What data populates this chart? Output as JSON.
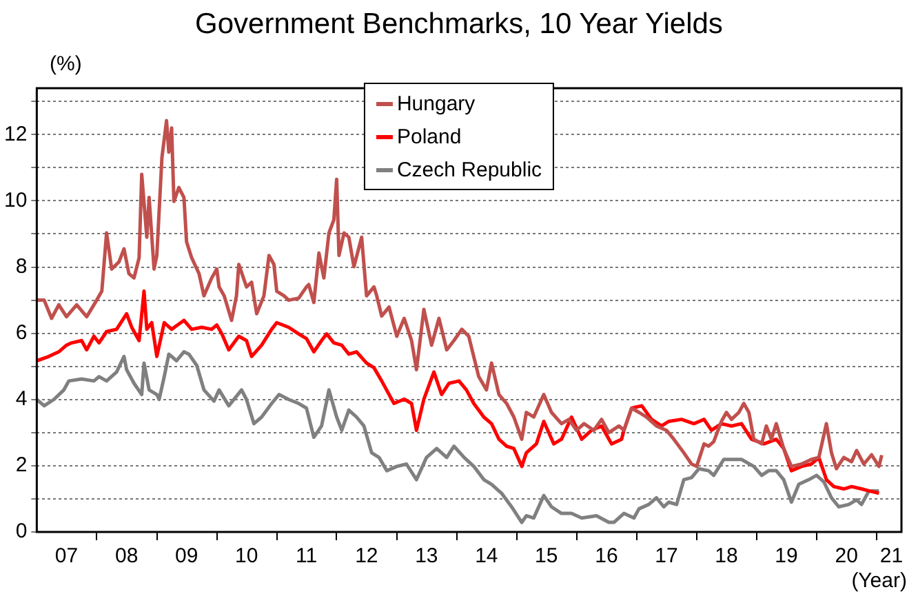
{
  "chart_data": {
    "type": "line",
    "title": "Government Benchmarks, 10 Year Yields",
    "xlabel": "(Year)",
    "ylabel": "(%)",
    "xlim": [
      "2007-01-01",
      "2021-06-01"
    ],
    "ylim": [
      0,
      13.4
    ],
    "xticks": [
      {
        "value": "2008-01-01",
        "label": null
      },
      {
        "value": "2009-01-01",
        "label": null
      },
      {
        "value": "2010-01-01",
        "label": null
      },
      {
        "value": "2011-01-01",
        "label": null
      },
      {
        "value": "2012-01-01",
        "label": null
      },
      {
        "value": "2013-01-01",
        "label": null
      },
      {
        "value": "2014-01-01",
        "label": null
      },
      {
        "value": "2015-01-01",
        "label": null
      },
      {
        "value": "2016-01-01",
        "label": null
      },
      {
        "value": "2017-01-01",
        "label": null
      },
      {
        "value": "2018-01-01",
        "label": null
      },
      {
        "value": "2019-01-01",
        "label": null
      },
      {
        "value": "2020-01-01",
        "label": null
      },
      {
        "value": "2021-01-01",
        "label": null
      },
      {
        "value": "2007-07-01",
        "label": "07"
      },
      {
        "value": "2008-07-01",
        "label": "08"
      },
      {
        "value": "2009-07-01",
        "label": "09"
      },
      {
        "value": "2010-07-01",
        "label": "10"
      },
      {
        "value": "2011-07-01",
        "label": "11"
      },
      {
        "value": "2012-07-01",
        "label": "12"
      },
      {
        "value": "2013-07-01",
        "label": "13"
      },
      {
        "value": "2014-07-01",
        "label": "14"
      },
      {
        "value": "2015-07-01",
        "label": "15"
      },
      {
        "value": "2016-07-01",
        "label": "16"
      },
      {
        "value": "2017-07-01",
        "label": "17"
      },
      {
        "value": "2018-07-01",
        "label": "18"
      },
      {
        "value": "2019-07-01",
        "label": "19"
      },
      {
        "value": "2020-07-01",
        "label": "20"
      },
      {
        "value": "2021-04-01",
        "label": "21"
      }
    ],
    "yticks": [
      0,
      {
        "value": 1,
        "label": null
      },
      2,
      {
        "value": 3,
        "label": null
      },
      4,
      {
        "value": 5,
        "label": null
      },
      6,
      {
        "value": 7,
        "label": null
      },
      8,
      {
        "value": 9,
        "label": null
      },
      10,
      {
        "value": 11,
        "label": null
      },
      12,
      {
        "value": 13,
        "label": null
      }
    ],
    "grid": "y",
    "legend": "top",
    "series": [
      {
        "name": "Hungary",
        "color": "#c0504d",
        "x": [
          "2007-01-01",
          "2007-02-15",
          "2007-04-01",
          "2007-05-15",
          "2007-07-01",
          "2007-09-01",
          "2007-11-01",
          "2008-01-01",
          "2008-02-01",
          "2008-03-01",
          "2008-04-01",
          "2008-05-15",
          "2008-06-15",
          "2008-07-15",
          "2008-08-15",
          "2008-09-15",
          "2008-10-01",
          "2008-11-01",
          "2008-11-15",
          "2008-12-15",
          "2009-01-01",
          "2009-02-01",
          "2009-03-01",
          "2009-03-15",
          "2009-04-01",
          "2009-04-15",
          "2009-05-15",
          "2009-06-15",
          "2009-07-01",
          "2009-08-01",
          "2009-09-15",
          "2009-10-15",
          "2009-12-01",
          "2010-01-01",
          "2010-01-15",
          "2010-02-15",
          "2010-04-01",
          "2010-05-01",
          "2010-05-15",
          "2010-07-01",
          "2010-08-01",
          "2010-09-01",
          "2010-10-15",
          "2010-11-15",
          "2010-12-15",
          "2011-01-01",
          "2011-02-15",
          "2011-03-15",
          "2011-05-15",
          "2011-07-01",
          "2011-07-15",
          "2011-08-15",
          "2011-09-15",
          "2011-10-15",
          "2011-11-15",
          "2011-12-15",
          "2012-01-01",
          "2012-01-15",
          "2012-02-15",
          "2012-03-15",
          "2012-04-15",
          "2012-06-01",
          "2012-07-01",
          "2012-08-15",
          "2012-09-01",
          "2012-10-01",
          "2012-11-15",
          "2013-01-01",
          "2013-02-15",
          "2013-04-01",
          "2013-05-01",
          "2013-06-15",
          "2013-08-01",
          "2013-09-15",
          "2013-11-01",
          "2013-12-15",
          "2014-02-01",
          "2014-03-15",
          "2014-05-15",
          "2014-07-01",
          "2014-08-01",
          "2014-09-15",
          "2014-11-01",
          "2014-12-15",
          "2015-02-01",
          "2015-03-01",
          "2015-04-15",
          "2015-06-15",
          "2015-08-01",
          "2015-10-01",
          "2015-11-15",
          "2016-01-01",
          "2016-02-15",
          "2016-04-15",
          "2016-06-01",
          "2016-07-15",
          "2016-09-15",
          "2016-10-15",
          "2016-12-01",
          "2017-01-15",
          "2017-03-01",
          "2017-05-01",
          "2017-07-01",
          "2017-08-15",
          "2017-10-15",
          "2017-12-01",
          "2018-01-01",
          "2018-02-15",
          "2018-03-15",
          "2018-04-15",
          "2018-06-01",
          "2018-07-01",
          "2018-08-01",
          "2018-09-15",
          "2018-10-15",
          "2018-11-15",
          "2018-12-15",
          "2019-02-01",
          "2019-03-01",
          "2019-04-01",
          "2019-05-01",
          "2019-06-15",
          "2019-08-01",
          "2019-10-01",
          "2019-12-01",
          "2020-01-15",
          "2020-03-01",
          "2020-04-01",
          "2020-05-01",
          "2020-06-15",
          "2020-08-01",
          "2020-09-01",
          "2020-10-15",
          "2020-12-01",
          "2021-01-15",
          "2021-02-01"
        ],
        "values": [
          7.0,
          7.0,
          6.45,
          6.86,
          6.5,
          6.86,
          6.5,
          7.0,
          7.27,
          9.03,
          7.94,
          8.15,
          8.55,
          7.8,
          7.67,
          8.28,
          10.8,
          8.9,
          10.1,
          7.94,
          8.35,
          11.3,
          12.42,
          11.47,
          12.2,
          9.98,
          10.4,
          10.1,
          8.76,
          8.28,
          7.8,
          7.13,
          7.67,
          7.94,
          7.4,
          7.13,
          6.39,
          7.13,
          8.08,
          7.4,
          7.54,
          6.59,
          7.13,
          8.35,
          8.08,
          7.27,
          7.13,
          7.0,
          7.06,
          7.4,
          7.47,
          6.93,
          8.42,
          7.67,
          9.03,
          9.43,
          10.65,
          8.35,
          9.03,
          8.9,
          8.01,
          8.9,
          7.13,
          7.4,
          7.13,
          6.52,
          6.79,
          5.91,
          6.45,
          5.78,
          4.9,
          6.72,
          5.64,
          6.45,
          5.5,
          5.78,
          6.12,
          5.91,
          4.69,
          4.29,
          5.1,
          4.15,
          3.88,
          3.47,
          2.8,
          3.61,
          3.47,
          4.15,
          3.61,
          3.27,
          3.4,
          3.07,
          3.27,
          3.07,
          3.4,
          3.0,
          3.2,
          3.07,
          3.74,
          3.61,
          3.47,
          3.2,
          3.07,
          2.8,
          2.39,
          2.05,
          1.98,
          2.66,
          2.59,
          2.73,
          3.34,
          3.61,
          3.4,
          3.61,
          3.88,
          3.61,
          2.8,
          2.66,
          3.2,
          2.8,
          3.27,
          2.52,
          1.98,
          2.05,
          2.19,
          2.25,
          3.27,
          2.39,
          1.91,
          2.25,
          2.12,
          2.46,
          2.05,
          2.33,
          1.98,
          2.32
        ]
      },
      {
        "name": "Poland",
        "color": "#ff0000",
        "x": [
          "2007-01-01",
          "2007-03-15",
          "2007-05-15",
          "2007-07-01",
          "2007-08-01",
          "2007-10-01",
          "2007-11-01",
          "2007-12-15",
          "2008-01-15",
          "2008-03-01",
          "2008-05-01",
          "2008-07-01",
          "2008-08-01",
          "2008-09-15",
          "2008-10-15",
          "2008-11-01",
          "2008-12-01",
          "2009-01-01",
          "2009-02-15",
          "2009-04-01",
          "2009-06-15",
          "2009-08-01",
          "2009-10-01",
          "2009-12-01",
          "2010-01-01",
          "2010-02-01",
          "2010-03-15",
          "2010-05-15",
          "2010-07-01",
          "2010-08-01",
          "2010-10-01",
          "2010-12-01",
          "2011-01-01",
          "2011-03-15",
          "2011-05-15",
          "2011-07-01",
          "2011-08-15",
          "2011-10-01",
          "2011-11-01",
          "2011-12-15",
          "2012-02-01",
          "2012-03-15",
          "2012-05-01",
          "2012-07-01",
          "2012-08-15",
          "2012-10-01",
          "2012-12-15",
          "2013-02-15",
          "2013-04-01",
          "2013-05-01",
          "2013-06-15",
          "2013-08-15",
          "2013-10-01",
          "2013-11-15",
          "2014-01-15",
          "2014-03-01",
          "2014-04-15",
          "2014-06-15",
          "2014-08-01",
          "2014-09-15",
          "2014-11-01",
          "2014-12-15",
          "2015-02-01",
          "2015-03-01",
          "2015-05-01",
          "2015-06-15",
          "2015-08-15",
          "2015-10-01",
          "2015-12-01",
          "2016-02-01",
          "2016-04-01",
          "2016-06-01",
          "2016-08-01",
          "2016-10-01",
          "2016-10-15",
          "2016-12-01",
          "2017-02-01",
          "2017-04-01",
          "2017-06-01",
          "2017-07-15",
          "2017-10-01",
          "2017-12-15",
          "2018-02-15",
          "2018-04-01",
          "2018-06-01",
          "2018-08-01",
          "2018-10-01",
          "2018-12-01",
          "2019-02-15",
          "2019-05-01",
          "2019-06-15",
          "2019-08-01",
          "2019-10-01",
          "2019-12-01",
          "2020-01-15",
          "2020-03-01",
          "2020-04-15",
          "2020-06-15",
          "2020-08-01",
          "2020-10-01",
          "2020-11-15",
          "2021-01-15"
        ],
        "values": [
          5.17,
          5.3,
          5.44,
          5.64,
          5.71,
          5.78,
          5.5,
          5.91,
          5.71,
          6.05,
          6.12,
          6.59,
          6.18,
          5.78,
          7.27,
          6.12,
          6.32,
          5.3,
          6.32,
          6.12,
          6.39,
          6.12,
          6.18,
          6.12,
          6.25,
          5.98,
          5.5,
          5.91,
          5.78,
          5.3,
          5.64,
          6.12,
          6.32,
          6.18,
          5.98,
          5.84,
          5.44,
          5.78,
          5.98,
          5.71,
          5.64,
          5.37,
          5.44,
          5.1,
          4.96,
          4.56,
          3.88,
          4.01,
          3.88,
          3.07,
          4.01,
          4.83,
          4.15,
          4.49,
          4.56,
          4.29,
          3.88,
          3.47,
          3.27,
          2.8,
          2.59,
          2.52,
          1.98,
          2.39,
          2.66,
          3.34,
          2.66,
          2.8,
          3.47,
          2.8,
          3.07,
          3.2,
          2.66,
          2.8,
          3.07,
          3.74,
          3.81,
          3.4,
          3.2,
          3.34,
          3.4,
          3.27,
          3.4,
          3.07,
          3.27,
          3.2,
          3.27,
          2.8,
          2.66,
          2.8,
          2.52,
          1.85,
          1.98,
          2.05,
          2.25,
          1.58,
          1.37,
          1.3,
          1.37,
          1.3,
          1.24,
          1.17
        ]
      },
      {
        "name": "Czech Republic",
        "color": "#808080",
        "x": [
          "2007-01-01",
          "2007-02-15",
          "2007-04-15",
          "2007-06-15",
          "2007-07-15",
          "2007-10-01",
          "2007-12-15",
          "2008-01-15",
          "2008-03-01",
          "2008-05-01",
          "2008-06-15",
          "2008-07-01",
          "2008-08-15",
          "2008-10-01",
          "2008-10-15",
          "2008-11-15",
          "2009-01-01",
          "2009-01-15",
          "2009-02-15",
          "2009-03-15",
          "2009-05-01",
          "2009-06-15",
          "2009-07-15",
          "2009-09-01",
          "2009-10-15",
          "2009-12-15",
          "2010-01-15",
          "2010-03-15",
          "2010-06-01",
          "2010-07-01",
          "2010-08-15",
          "2010-10-01",
          "2010-12-01",
          "2011-01-15",
          "2011-03-15",
          "2011-05-15",
          "2011-07-01",
          "2011-08-15",
          "2011-10-01",
          "2011-11-15",
          "2012-01-01",
          "2012-02-01",
          "2012-03-15",
          "2012-05-01",
          "2012-06-15",
          "2012-08-01",
          "2012-09-15",
          "2012-11-01",
          "2013-01-01",
          "2013-03-01",
          "2013-05-01",
          "2013-07-01",
          "2013-09-01",
          "2013-11-01",
          "2013-12-15",
          "2014-02-15",
          "2014-04-15",
          "2014-06-15",
          "2014-08-01",
          "2014-10-01",
          "2014-12-01",
          "2015-02-01",
          "2015-03-01",
          "2015-04-15",
          "2015-06-15",
          "2015-08-01",
          "2015-10-01",
          "2015-12-01",
          "2016-02-01",
          "2016-05-01",
          "2016-07-15",
          "2016-08-15",
          "2016-10-15",
          "2016-12-15",
          "2017-01-15",
          "2017-03-15",
          "2017-05-01",
          "2017-06-15",
          "2017-07-15",
          "2017-09-01",
          "2017-10-15",
          "2017-12-01",
          "2018-01-15",
          "2018-03-15",
          "2018-04-15",
          "2018-06-15",
          "2018-08-15",
          "2018-10-01",
          "2018-12-15",
          "2019-02-01",
          "2019-03-15",
          "2019-05-01",
          "2019-06-15",
          "2019-08-01",
          "2019-09-15",
          "2019-11-15",
          "2020-01-01",
          "2020-02-15",
          "2020-04-01",
          "2020-05-15",
          "2020-07-15",
          "2020-09-01",
          "2020-10-01",
          "2020-11-15",
          "2021-01-15"
        ],
        "values": [
          4.0,
          3.81,
          4.0,
          4.29,
          4.56,
          4.62,
          4.56,
          4.69,
          4.56,
          4.83,
          5.3,
          4.9,
          4.49,
          4.15,
          5.1,
          4.29,
          4.15,
          4.0,
          4.69,
          5.37,
          5.17,
          5.44,
          5.37,
          5.03,
          4.29,
          3.95,
          4.29,
          3.81,
          4.29,
          4.0,
          3.27,
          3.47,
          3.88,
          4.15,
          4.0,
          3.88,
          3.74,
          2.86,
          3.2,
          4.29,
          3.47,
          3.07,
          3.68,
          3.47,
          3.2,
          2.39,
          2.25,
          1.85,
          1.98,
          2.05,
          1.58,
          2.25,
          2.52,
          2.25,
          2.59,
          2.25,
          1.98,
          1.58,
          1.44,
          1.17,
          0.76,
          0.29,
          0.49,
          0.42,
          1.1,
          0.76,
          0.56,
          0.56,
          0.42,
          0.49,
          0.29,
          0.29,
          0.56,
          0.42,
          0.7,
          0.83,
          1.03,
          0.76,
          0.9,
          0.83,
          1.58,
          1.64,
          1.91,
          1.85,
          1.71,
          2.19,
          2.19,
          2.19,
          1.98,
          1.71,
          1.85,
          1.85,
          1.58,
          0.9,
          1.44,
          1.58,
          1.71,
          1.51,
          1.03,
          0.76,
          0.83,
          0.97,
          0.83,
          1.24,
          1.24
        ]
      }
    ]
  }
}
